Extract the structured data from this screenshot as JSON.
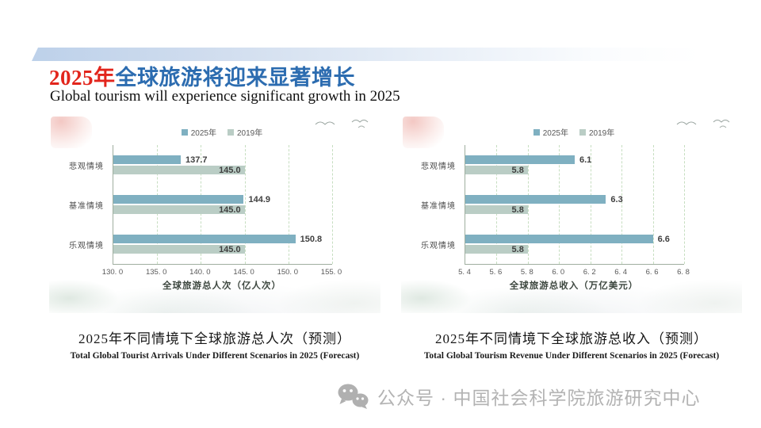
{
  "slide": {
    "title_red": "2025年",
    "title_blue": "全球旅游将迎来显著增长",
    "subtitle": "Global tourism will experience significant growth in 2025"
  },
  "watermark": {
    "icon": "wechat-logo-icon",
    "text": "公众号 · 中国社会科学院旅游研究中心"
  },
  "colors": {
    "title_red": "#e2251c",
    "title_blue": "#2c6cb0",
    "bar_2025": "#7fb0c1",
    "bar_2019": "#bacdc5",
    "gridline": "#c6dec0",
    "axis_line": "#9fae9f",
    "tick_text": "#595959",
    "value_label": "#3f3f3f",
    "watermark_gray": "#b3b3b3",
    "top_band_blue": "#bdd1ea"
  },
  "chart_data": [
    {
      "type": "bar",
      "orientation": "horizontal",
      "caption_zh": "2025年不同情境下全球旅游总人次（预测）",
      "caption_en": "Total Global Tourist Arrivals Under Different Scenarios in 2025 (Forecast)",
      "xlabel": "全球旅游总人次（亿人次）",
      "categories": [
        "悲观情境",
        "基准情境",
        "乐观情境"
      ],
      "series": [
        {
          "name": "2025年",
          "color": "#7fb0c1",
          "values": [
            137.7,
            144.9,
            150.8
          ],
          "labels": [
            "137.7",
            "144.9",
            "150.8"
          ],
          "label_position": "outside"
        },
        {
          "name": "2019年",
          "color": "#bacdc5",
          "values": [
            145.0,
            145.0,
            145.0
          ],
          "labels": [
            "145.0",
            "145.0",
            "145.0"
          ],
          "label_position": "inside"
        }
      ],
      "xlim": [
        130,
        155
      ],
      "xticks": [
        {
          "label": "130. 0",
          "value": 130
        },
        {
          "label": "135. 0",
          "value": 135
        },
        {
          "label": "140. 0",
          "value": 140
        },
        {
          "label": "145. 0",
          "value": 145
        },
        {
          "label": "150. 0",
          "value": 150
        },
        {
          "label": "155. 0",
          "value": 155
        }
      ],
      "grid": "dashed-vertical",
      "legend_position": "top"
    },
    {
      "type": "bar",
      "orientation": "horizontal",
      "caption_zh": "2025年不同情境下全球旅游总收入（预测）",
      "caption_en": "Total Global Tourism Revenue Under Different Scenarios in 2025 (Forecast)",
      "xlabel": "全球旅游总收入（万亿美元）",
      "categories": [
        "悲观情境",
        "基准情境",
        "乐观情境"
      ],
      "series": [
        {
          "name": "2025年",
          "color": "#7fb0c1",
          "values": [
            6.1,
            6.3,
            6.6
          ],
          "labels": [
            "6.1",
            "6.3",
            "6.6"
          ],
          "label_position": "outside"
        },
        {
          "name": "2019年",
          "color": "#bacdc5",
          "values": [
            5.8,
            5.8,
            5.8
          ],
          "labels": [
            "5.8",
            "5.8",
            "5.8"
          ],
          "label_position": "inside"
        }
      ],
      "xlim": [
        5.4,
        6.8
      ],
      "xticks": [
        {
          "label": "5. 4",
          "value": 5.4
        },
        {
          "label": "5. 6",
          "value": 5.6
        },
        {
          "label": "5. 8",
          "value": 5.8
        },
        {
          "label": "6. 0",
          "value": 6.0
        },
        {
          "label": "6. 2",
          "value": 6.2
        },
        {
          "label": "6. 4",
          "value": 6.4
        },
        {
          "label": "6. 6",
          "value": 6.6
        },
        {
          "label": "6. 8",
          "value": 6.8
        }
      ],
      "grid": "dashed-vertical",
      "legend_position": "top"
    }
  ]
}
